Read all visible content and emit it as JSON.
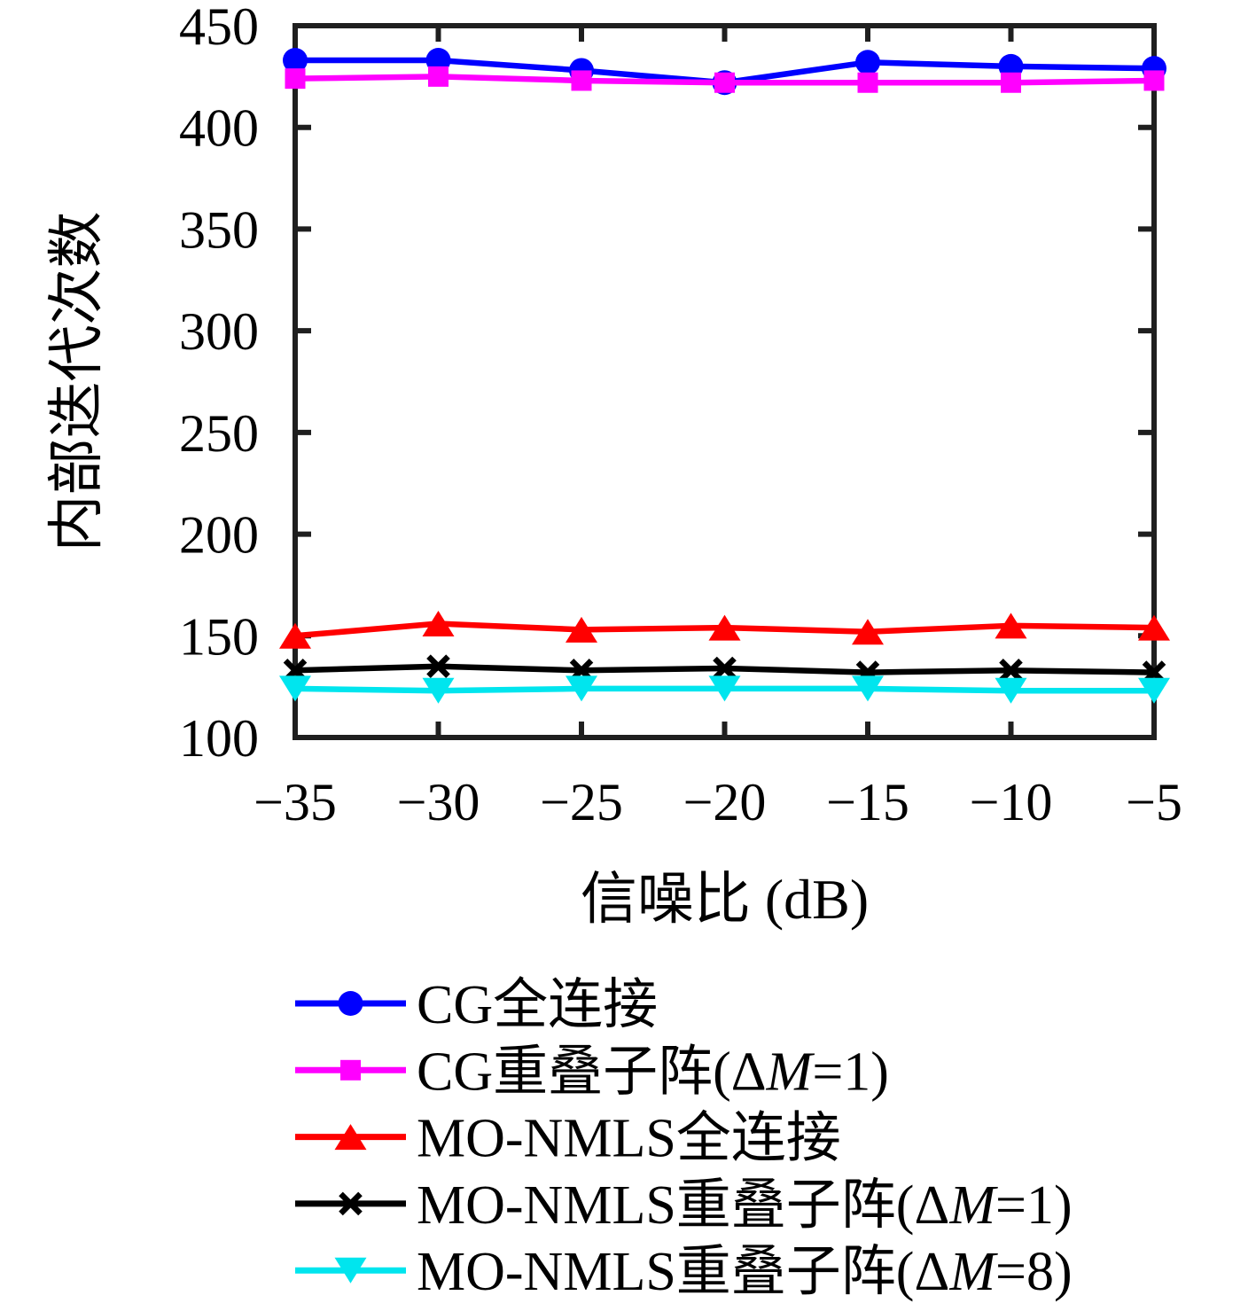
{
  "figure": {
    "background": "#ffffff",
    "axis_color": "#1f1f1f",
    "text_color": "#000000"
  },
  "chart_data": {
    "type": "line",
    "title": "",
    "xlabel": "信噪比 (dB)",
    "ylabel": "内部迭代次数",
    "x": [
      -35,
      -30,
      -25,
      -20,
      -15,
      -10,
      -5
    ],
    "xlim": [
      -35,
      -5
    ],
    "ylim": [
      100,
      450
    ],
    "xticks": [
      -35,
      -30,
      -25,
      -20,
      -15,
      -10,
      -5
    ],
    "xtick_labels": [
      "−35",
      "−30",
      "−25",
      "−20",
      "−15",
      "−10",
      "−5"
    ],
    "yticks": [
      100,
      150,
      200,
      250,
      300,
      350,
      400,
      450
    ],
    "ytick_labels": [
      "100",
      "150",
      "200",
      "250",
      "300",
      "350",
      "400",
      "450"
    ],
    "grid": false,
    "box": true,
    "legend_position": "below-left",
    "series": [
      {
        "name": "CG全连接",
        "color": "#0000FF",
        "marker": "circle",
        "values": [
          433,
          433,
          428,
          422,
          432,
          430,
          429
        ]
      },
      {
        "name": "CG重叠子阵(ΔM=1)",
        "color": "#FF00FF",
        "marker": "square",
        "values": [
          424,
          425,
          423,
          422,
          422,
          422,
          423
        ]
      },
      {
        "name": "MO-NMLS全连接",
        "color": "#FF0000",
        "marker": "triangle-up",
        "values": [
          150,
          156,
          153,
          154,
          152,
          155,
          154
        ]
      },
      {
        "name": "MO-NMLS重叠子阵(ΔM=1)",
        "color": "#000000",
        "marker": "x",
        "values": [
          133,
          135,
          133,
          134,
          132,
          133,
          132
        ]
      },
      {
        "name": "MO-NMLS重叠子阵(ΔM=8)",
        "color": "#00E5EE",
        "marker": "triangle-down",
        "values": [
          124,
          123,
          124,
          124,
          124,
          123,
          123
        ]
      }
    ]
  }
}
